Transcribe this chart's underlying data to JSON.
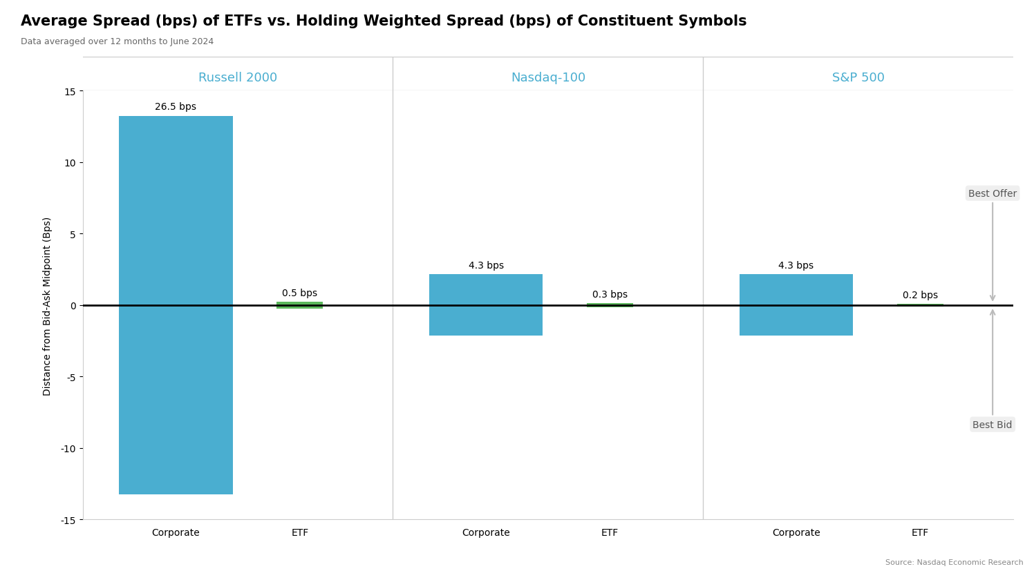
{
  "title": "Average Spread (bps) of ETFs vs. Holding Weighted Spread (bps) of Constituent Symbols",
  "subtitle": "Data averaged over 12 months to June 2024",
  "ylabel": "Distance from Bid-Ask Midpoint (Bps)",
  "source": "Source: Nasdaq Economic Research",
  "groups": [
    "Russell 2000",
    "Nasdaq-100",
    "S&P 500"
  ],
  "categories": [
    "Corporate",
    "ETF"
  ],
  "spreads": [
    {
      "corporate": 26.5,
      "etf": 0.5
    },
    {
      "corporate": 4.3,
      "etf": 0.3
    },
    {
      "corporate": 4.3,
      "etf": 0.2
    }
  ],
  "bar_color_corporate": "#4aaed0",
  "bar_color_etf": "#5cb85c",
  "ylim": [
    -15,
    15
  ],
  "yticks": [
    -15,
    -10,
    -5,
    0,
    5,
    10,
    15
  ],
  "background_color": "#ffffff",
  "annotation_arrow_color": "#bbbbbb",
  "title_fontsize": 15,
  "subtitle_fontsize": 9,
  "label_fontsize": 10,
  "axis_label_fontsize": 10,
  "group_label_fontsize": 13,
  "tick_fontsize": 10,
  "source_fontsize": 8,
  "annotation_fontsize": 10,
  "group_title_color": "#4aaed0",
  "annotation_box_color": "#eeeeee",
  "annotation_text_color": "#555555",
  "divider_color": "#cccccc"
}
